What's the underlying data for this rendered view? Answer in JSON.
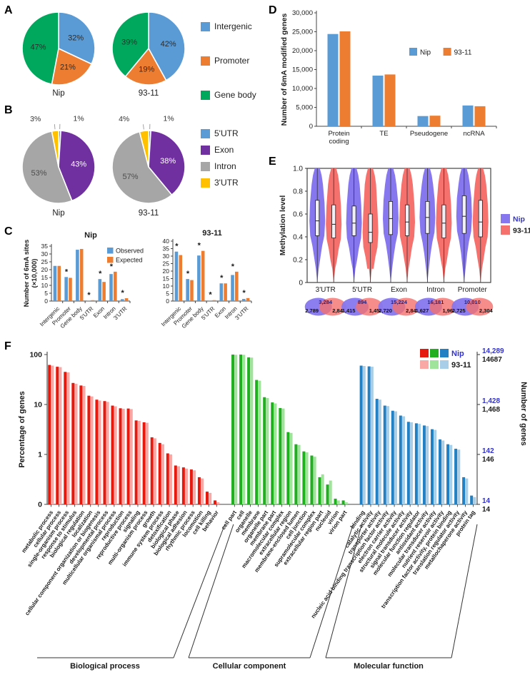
{
  "figure": {
    "background": "#ffffff"
  },
  "panel_labels": {
    "a": "A",
    "b": "B",
    "c": "C",
    "d": "D",
    "e": "E",
    "f": "F"
  },
  "colors": {
    "blue": "#5B9BD5",
    "orange": "#ED7D31",
    "green": "#00A85E",
    "purple": "#7030A0",
    "gray": "#A6A6A6",
    "gold": "#FFC000",
    "violin_nip": "#8677EE",
    "violin_93": "#F4716E",
    "bp_dark": "#E6190E",
    "bp_light": "#F9A8A5",
    "cc_dark": "#1FAF1F",
    "cc_light": "#A0E39A",
    "mf_dark": "#2380C3",
    "mf_light": "#A9CFE8",
    "accent_purple_text": "#3333CC",
    "axis": "#444444"
  },
  "star_symbol": "*",
  "chart_data": [
    {
      "id": "A",
      "type": "pie",
      "legend": [
        {
          "label": "Intergenic",
          "color": "#5B9BD5"
        },
        {
          "label": "Promoter",
          "color": "#ED7D31"
        },
        {
          "label": "Gene body",
          "color": "#00A85E"
        }
      ],
      "pies": [
        {
          "name": "Nip",
          "slices": [
            {
              "label": "Intergenic",
              "value": 32,
              "text": "32%",
              "color": "#5B9BD5",
              "label_color": "#2b2b2b"
            },
            {
              "label": "Promoter",
              "value": 21,
              "text": "21%",
              "color": "#ED7D31",
              "label_color": "#2b2b2b"
            },
            {
              "label": "Gene body",
              "value": 47,
              "text": "47%",
              "color": "#00A85E",
              "label_color": "#2b2b2b"
            }
          ]
        },
        {
          "name": "93-11",
          "slices": [
            {
              "label": "Intergenic",
              "value": 42,
              "text": "42%",
              "color": "#5B9BD5",
              "label_color": "#2b2b2b"
            },
            {
              "label": "Promoter",
              "value": 19,
              "text": "19%",
              "color": "#ED7D31",
              "label_color": "#2b2b2b"
            },
            {
              "label": "Gene body",
              "value": 39,
              "text": "39%",
              "color": "#00A85E",
              "label_color": "#2b2b2b"
            }
          ]
        }
      ]
    },
    {
      "id": "B",
      "type": "pie",
      "legend": [
        {
          "label": "5'UTR",
          "color": "#5B9BD5"
        },
        {
          "label": "Exon",
          "color": "#7030A0"
        },
        {
          "label": "Intron",
          "color": "#A6A6A6"
        },
        {
          "label": "3'UTR",
          "color": "#FFC000"
        }
      ],
      "pies": [
        {
          "name": "Nip",
          "slices": [
            {
              "label": "5'UTR",
              "value": 1,
              "text": "1%",
              "color": "#5B9BD5",
              "label_color": "#333333"
            },
            {
              "label": "Exon",
              "value": 43,
              "text": "43%",
              "color": "#7030A0",
              "label_color": "#ffffff"
            },
            {
              "label": "Intron",
              "value": 53,
              "text": "53%",
              "color": "#A6A6A6",
              "label_color": "#4d4d4d"
            },
            {
              "label": "3'UTR",
              "value": 3,
              "text": "3%",
              "color": "#FFC000",
              "label_color": "#333333"
            }
          ]
        },
        {
          "name": "93-11",
          "slices": [
            {
              "label": "5'UTR",
              "value": 1,
              "text": "1%",
              "color": "#5B9BD5",
              "label_color": "#333333"
            },
            {
              "label": "Exon",
              "value": 38,
              "text": "38%",
              "color": "#7030A0",
              "label_color": "#ffffff"
            },
            {
              "label": "Intron",
              "value": 57,
              "text": "57%",
              "color": "#A6A6A6",
              "label_color": "#4d4d4d"
            },
            {
              "label": "3'UTR",
              "value": 4,
              "text": "4%",
              "color": "#FFC000",
              "label_color": "#333333"
            }
          ]
        }
      ]
    },
    {
      "id": "C",
      "type": "bar",
      "ylabel_line1": "Number of 6mA sites",
      "ylabel_line2": "(×10,000)",
      "legend": [
        {
          "label": "Observed",
          "color": "#5B9BD5"
        },
        {
          "label": "Expected",
          "color": "#ED7D31"
        }
      ],
      "categories": [
        "Intergenic",
        "Promoter",
        "Gene body",
        "5'UTR",
        "Exon",
        "Intron",
        "3'UTR"
      ],
      "subcharts": [
        {
          "title": "Nip",
          "ymax": 35,
          "ystep": 5,
          "observed": [
            22.4,
            15.3,
            32.7,
            0.3,
            14.0,
            17.2,
            1.2
          ],
          "expected": [
            22.4,
            14.8,
            33.2,
            0.55,
            12.2,
            18.7,
            1.8
          ],
          "stars": [
            0,
            1,
            0,
            1,
            1,
            1,
            1
          ]
        },
        {
          "title": "93-11",
          "ymax": 40,
          "ystep": 5,
          "observed": [
            33.0,
            14.7,
            30.4,
            0.35,
            11.8,
            17.4,
            1.4
          ],
          "expected": [
            30.7,
            14.0,
            33.5,
            0.6,
            11.8,
            19.6,
            2.0
          ],
          "stars": [
            1,
            1,
            1,
            1,
            1,
            1,
            1
          ]
        }
      ]
    },
    {
      "id": "D",
      "type": "bar",
      "ylabel": "Number of 6mA modified genes",
      "ymax": 30000,
      "ystep": 5000,
      "categories": [
        "Protein\ncoding",
        "TE",
        "Pseudogene",
        "ncRNA"
      ],
      "series": [
        {
          "name": "Nip",
          "color": "#5B9BD5",
          "values": [
            24400,
            13400,
            2700,
            5500
          ]
        },
        {
          "name": "93-11",
          "color": "#ED7D31",
          "values": [
            25100,
            13700,
            2800,
            5300
          ]
        }
      ]
    },
    {
      "id": "E",
      "type": "violin",
      "ylabel": "Methylation level",
      "yticks": [
        "0",
        "0.2",
        "0.4",
        "0.6",
        "0.8",
        "1.0"
      ],
      "categories": [
        "3'UTR",
        "5'UTR",
        "Exon",
        "Intron",
        "Promoter"
      ],
      "series": [
        {
          "name": "Nip",
          "color": "#8677EE",
          "stats": [
            {
              "med": 0.54,
              "q1": 0.41,
              "q3": 0.72
            },
            {
              "med": 0.52,
              "q1": 0.41,
              "q3": 0.67
            },
            {
              "med": 0.56,
              "q1": 0.42,
              "q3": 0.71
            },
            {
              "med": 0.57,
              "q1": 0.43,
              "q3": 0.71
            },
            {
              "med": 0.58,
              "q1": 0.43,
              "q3": 0.76
            }
          ]
        },
        {
          "name": "93-11",
          "color": "#F4716E",
          "stats": [
            {
              "med": 0.51,
              "q1": 0.39,
              "q3": 0.68
            },
            {
              "med": 0.44,
              "q1": 0.35,
              "q3": 0.6
            },
            {
              "med": 0.53,
              "q1": 0.41,
              "q3": 0.68
            },
            {
              "med": 0.52,
              "q1": 0.39,
              "q3": 0.68
            },
            {
              "med": 0.53,
              "q1": 0.4,
              "q3": 0.72
            }
          ]
        }
      ],
      "venn": [
        {
          "category": "3'UTR",
          "shared": "3,284",
          "nip": "2,789",
          "v93": "2,841"
        },
        {
          "category": "5'UTR",
          "shared": "894",
          "nip": "1,415",
          "v93": "1,452"
        },
        {
          "category": "Exon",
          "shared": "15,224",
          "nip": "2,720",
          "v93": "2,841"
        },
        {
          "category": "Intron",
          "shared": "16,181",
          "nip": "1,627",
          "v93": "1,965"
        },
        {
          "category": "Promoter",
          "shared": "10,010",
          "nip": "2,725",
          "v93": "2,304"
        }
      ]
    },
    {
      "id": "F",
      "type": "bar",
      "ylabel_left": "Percentage of genes",
      "ylabel_right": "Number of genes",
      "left_ticks": [
        "100",
        "10",
        "1",
        "0"
      ],
      "right_ticks": [
        {
          "nip": "14,289",
          "v93": "14687"
        },
        {
          "nip": "1,428",
          "v93": "1,468"
        },
        {
          "nip": "142",
          "v93": "146"
        },
        {
          "nip": "14",
          "v93": "14"
        }
      ],
      "legend": {
        "nip": "Nip",
        "v93": "93-11"
      },
      "groups": [
        {
          "name": "Biological process",
          "dark": "#E6190E",
          "light": "#F9A8A5",
          "categories": [
            "metabolic process",
            "cellular process",
            "single-organism process",
            "response to stimulus",
            "biological regulation",
            "localization",
            "cellular component organization or biogenesis",
            "developmental process",
            "multicellular organismal process",
            "reproduction",
            "reproductive process",
            "signaling",
            "multi-organism process",
            "growth",
            "immune system process",
            "detoxification",
            "biological phase",
            "biological adhesion",
            "rhythmic process",
            "locomotion",
            "cell killing",
            "behavior"
          ],
          "nip": [
            62,
            57,
            45,
            27,
            24,
            15,
            12.5,
            11.7,
            9.5,
            8.4,
            8.3,
            4.8,
            4.4,
            2.2,
            1.7,
            1.05,
            0.6,
            0.55,
            0.5,
            0.35,
            0.18,
            0.12
          ],
          "v93": [
            60,
            56,
            44,
            26,
            23.5,
            14.5,
            12,
            11.3,
            9.2,
            8.2,
            8.1,
            4.7,
            4.3,
            2.1,
            1.6,
            1.0,
            0.58,
            0.52,
            0.48,
            0.33,
            0.17,
            0.11
          ]
        },
        {
          "name": "Cellular component",
          "dark": "#1FAF1F",
          "light": "#A0E39A",
          "categories": [
            "cell part",
            "cell",
            "organelle",
            "membrane",
            "organelle part",
            "membrane part",
            "macromolecular complex",
            "extracellular region",
            "membrane-enclosed lumen",
            "cell junction",
            "supramolecular complex",
            "extracellular region part",
            "nucleoid",
            "virion",
            "virion part"
          ],
          "nip": [
            100,
            100,
            88,
            31,
            14,
            11,
            8.5,
            2.8,
            1.6,
            1.15,
            0.95,
            0.35,
            0.25,
            0.13,
            0.12
          ],
          "v93": [
            99,
            99,
            87,
            30,
            13.5,
            10.5,
            8.3,
            2.7,
            1.55,
            1.1,
            0.9,
            0.4,
            0.3,
            0.12,
            0.11
          ]
        },
        {
          "name": "Molecular function",
          "dark": "#2380C3",
          "light": "#A9CFE8",
          "categories": [
            "binding",
            "catalytic activity",
            "transporter activity",
            "nucleic acid binding transcription factor activity",
            "electron carrier activity",
            "structural molecule activity",
            "signal transducer activity",
            "molecular function regulator",
            "antioxidant activity",
            "molecular transducer activity",
            "nutrient reservoir activity",
            "transcription factor activity, protein binding",
            "translation regulator activity",
            "metallochaperone activity",
            "protein tag"
          ],
          "nip": [
            60,
            58,
            13,
            9.5,
            7.5,
            6,
            4.5,
            4.2,
            3.8,
            3.2,
            2.0,
            1.6,
            1.3,
            0.35,
            0.15
          ],
          "v93": [
            59,
            57,
            12.5,
            9.3,
            7.3,
            5.8,
            4.4,
            4.1,
            3.7,
            3.1,
            1.9,
            1.55,
            1.25,
            0.33,
            0.14
          ]
        }
      ]
    }
  ]
}
